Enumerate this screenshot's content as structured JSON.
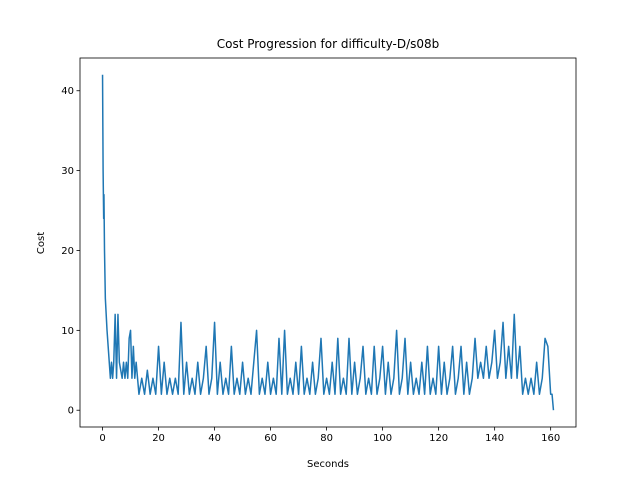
{
  "chart_data": {
    "type": "line",
    "title": "Cost Progression for difficulty-D/s08b",
    "xlabel": "Seconds",
    "ylabel": "Cost",
    "series": [
      {
        "name": "Cost",
        "color": "#1f77b4",
        "x": [
          0,
          0.2,
          0.4,
          0.5,
          0.7,
          1,
          1.3,
          1.6,
          2,
          2.4,
          2.8,
          3.2,
          3.6,
          4,
          4.5,
          5,
          5.5,
          6,
          7,
          7.5,
          8,
          8.5,
          9,
          9.5,
          10,
          10.5,
          11,
          11.5,
          12,
          12.5,
          13,
          14,
          15,
          16,
          17,
          18,
          19,
          20,
          21,
          22,
          23,
          24,
          25,
          26,
          27,
          28,
          29,
          30,
          31,
          32,
          33,
          34,
          35,
          36,
          37,
          38,
          39,
          40,
          41,
          42,
          43,
          44,
          45,
          46,
          47,
          48,
          49,
          50,
          51,
          52,
          53,
          54,
          55,
          56,
          57,
          58,
          59,
          60,
          61,
          62,
          63,
          64,
          65,
          66,
          67,
          68,
          69,
          70,
          71,
          72,
          73,
          74,
          75,
          76,
          77,
          78,
          79,
          80,
          81,
          82,
          83,
          84,
          85,
          86,
          87,
          88,
          89,
          90,
          91,
          92,
          93,
          94,
          95,
          96,
          97,
          98,
          99,
          100,
          101,
          102,
          103,
          104,
          105,
          106,
          107,
          108,
          109,
          110,
          111,
          112,
          113,
          114,
          115,
          116,
          117,
          118,
          119,
          120,
          121,
          122,
          123,
          124,
          125,
          126,
          127,
          128,
          129,
          130,
          131,
          132,
          133,
          134,
          135,
          136,
          137,
          138,
          139,
          140,
          141,
          142,
          143,
          144,
          145,
          146,
          147,
          148,
          149,
          150,
          151,
          152,
          153,
          154,
          155,
          156,
          157,
          158,
          159,
          160,
          160.5,
          161
        ],
        "values": [
          42,
          30,
          24,
          27,
          20,
          14,
          12,
          10,
          8,
          6,
          4,
          6,
          4,
          6,
          12,
          4,
          12,
          6,
          4,
          6,
          4,
          6,
          4,
          9,
          10,
          4,
          8,
          4,
          6,
          4,
          2,
          4,
          2,
          5,
          2,
          4,
          2,
          8,
          2,
          6,
          2,
          4,
          2,
          4,
          2,
          11,
          2,
          6,
          2,
          4,
          2,
          6,
          2,
          4,
          8,
          2,
          4,
          11,
          2,
          6,
          2,
          4,
          2,
          8,
          2,
          4,
          2,
          6,
          2,
          4,
          2,
          6,
          10,
          2,
          4,
          2,
          6,
          2,
          4,
          2,
          9,
          2,
          10,
          2,
          4,
          2,
          6,
          2,
          8,
          2,
          4,
          2,
          6,
          2,
          4,
          9,
          2,
          4,
          2,
          6,
          2,
          9,
          2,
          4,
          2,
          9,
          2,
          6,
          2,
          4,
          8,
          2,
          4,
          2,
          8,
          2,
          4,
          8,
          2,
          6,
          2,
          4,
          10,
          2,
          4,
          9,
          2,
          6,
          2,
          4,
          2,
          6,
          2,
          8,
          2,
          4,
          2,
          8,
          2,
          6,
          2,
          4,
          8,
          2,
          4,
          8,
          2,
          6,
          2,
          4,
          9,
          4,
          6,
          4,
          8,
          4,
          6,
          10,
          4,
          6,
          11,
          4,
          8,
          4,
          12,
          4,
          8,
          2,
          4,
          2,
          4,
          2,
          6,
          2,
          4,
          9,
          8,
          2,
          2,
          0
        ]
      }
    ],
    "xlim": [
      -8.05,
      169.05
    ],
    "ylim": [
      -2.1,
      44.1
    ],
    "xticks": [
      0,
      20,
      40,
      60,
      80,
      100,
      120,
      140,
      160
    ],
    "yticks": [
      0,
      10,
      20,
      30,
      40
    ]
  }
}
